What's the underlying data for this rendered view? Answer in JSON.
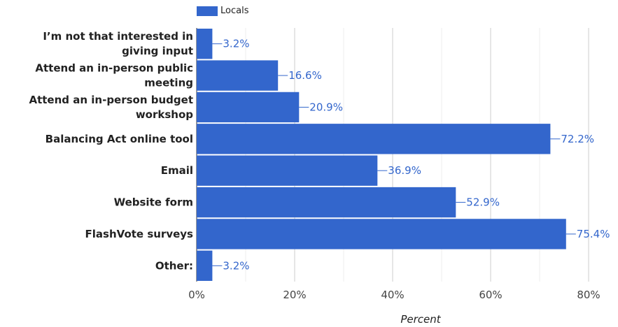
{
  "legend": {
    "label": "Locals",
    "color": "#3366cc"
  },
  "chart_data": {
    "type": "bar",
    "orientation": "horizontal",
    "categories": [
      "I’m not that interested in giving input",
      "Attend an in-person public meeting",
      "Attend an in-person budget workshop",
      "Balancing Act online tool",
      "Email",
      "Website form",
      "FlashVote surveys",
      "Other:"
    ],
    "category_lines": [
      [
        "I’m not that interested in",
        "giving input"
      ],
      [
        "Attend an in-person public",
        "meeting"
      ],
      [
        "Attend an in-person budget",
        "workshop"
      ],
      [
        "Balancing Act online tool"
      ],
      [
        "Email"
      ],
      [
        "Website form"
      ],
      [
        "FlashVote surveys"
      ],
      [
        "Other:"
      ]
    ],
    "series": [
      {
        "name": "Locals",
        "values": [
          3.2,
          16.6,
          20.9,
          72.2,
          36.9,
          52.9,
          75.4,
          3.2
        ],
        "color": "#3366cc"
      }
    ],
    "value_labels": [
      "3.2%",
      "16.6%",
      "20.9%",
      "72.2%",
      "36.9%",
      "52.9%",
      "75.4%",
      "3.2%"
    ],
    "xlabel": "Percent",
    "xlim": [
      0,
      80
    ],
    "xticks": [
      0,
      20,
      40,
      60,
      80
    ],
    "xtick_labels": [
      "0%",
      "20%",
      "40%",
      "60%",
      "80%"
    ],
    "grid": true,
    "legend_position": "top"
  }
}
